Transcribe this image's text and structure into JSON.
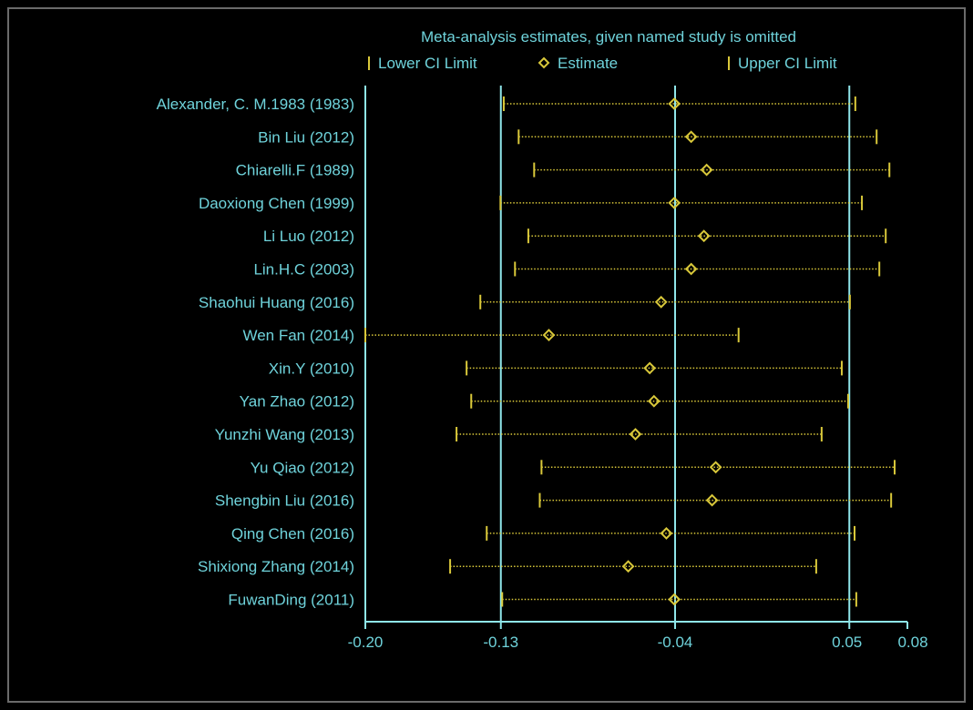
{
  "chart_data": {
    "type": "forest",
    "title": "Meta-analysis estimates, given named study is omitted",
    "legend": [
      "Lower CI Limit",
      "Estimate",
      "Upper CI Limit"
    ],
    "legend_placement": "top",
    "x_ticks": [
      "-0.20",
      "-0.13",
      "-0.04",
      "0.05",
      "0.08"
    ],
    "x_tick_values": [
      -0.2,
      -0.13,
      -0.04,
      0.05,
      0.08
    ],
    "reference_lines": [
      -0.2,
      -0.13,
      -0.04,
      0.05
    ],
    "xlim": [
      -0.2,
      0.08
    ],
    "studies": [
      {
        "label": "Alexander, C. M.1983 (1983)",
        "lower": -0.1285,
        "estimate": -0.0404,
        "upper": 0.0531
      },
      {
        "label": "Bin Liu (2012)",
        "lower": -0.1208,
        "estimate": -0.0317,
        "upper": 0.0641
      },
      {
        "label": "Chiarelli.F (1989)",
        "lower": -0.1128,
        "estimate": -0.0237,
        "upper": 0.0707
      },
      {
        "label": "Daoxiong Chen  (1999)",
        "lower": -0.1302,
        "estimate": -0.0404,
        "upper": 0.0565
      },
      {
        "label": "Li Luo (2012)",
        "lower": -0.1158,
        "estimate": -0.0251,
        "upper": 0.0688
      },
      {
        "label": "Lin.H.C (2003)",
        "lower": -0.1227,
        "estimate": -0.0317,
        "upper": 0.0655
      },
      {
        "label": "Shaohui Huang (2016)",
        "lower": -0.1406,
        "estimate": -0.0472,
        "upper": 0.0503
      },
      {
        "label": "Wen Fan (2014)",
        "lower": -0.2,
        "estimate": -0.1052,
        "upper": -0.0072
      },
      {
        "label": "Xin.Y (2010)",
        "lower": -0.1477,
        "estimate": -0.0531,
        "upper": 0.0461
      },
      {
        "label": "Yan Zhao  (2012)",
        "lower": -0.1453,
        "estimate": -0.0509,
        "upper": 0.0494
      },
      {
        "label": "Yunzhi Wang (2013)",
        "lower": -0.1529,
        "estimate": -0.0605,
        "upper": 0.0357
      },
      {
        "label": "Yu Qiao (2012)",
        "lower": -0.109,
        "estimate": -0.019,
        "upper": 0.0734
      },
      {
        "label": "Shengbin Liu (2016)",
        "lower": -0.1099,
        "estimate": -0.0209,
        "upper": 0.0716
      },
      {
        "label": "Qing Chen (2016)",
        "lower": -0.1373,
        "estimate": -0.0445,
        "upper": 0.0527
      },
      {
        "label": "Shixiong Zhang (2014)",
        "lower": -0.1562,
        "estimate": -0.0642,
        "upper": 0.0329
      },
      {
        "label": "FuwanDing (2011)",
        "lower": -0.1293,
        "estimate": -0.0404,
        "upper": 0.0536
      }
    ]
  },
  "colors": {
    "background": "#000000",
    "text": "#6fd3db",
    "axis": "#8fe6ea",
    "marker": "#d9c83a",
    "frame": "#6b6b6b"
  }
}
